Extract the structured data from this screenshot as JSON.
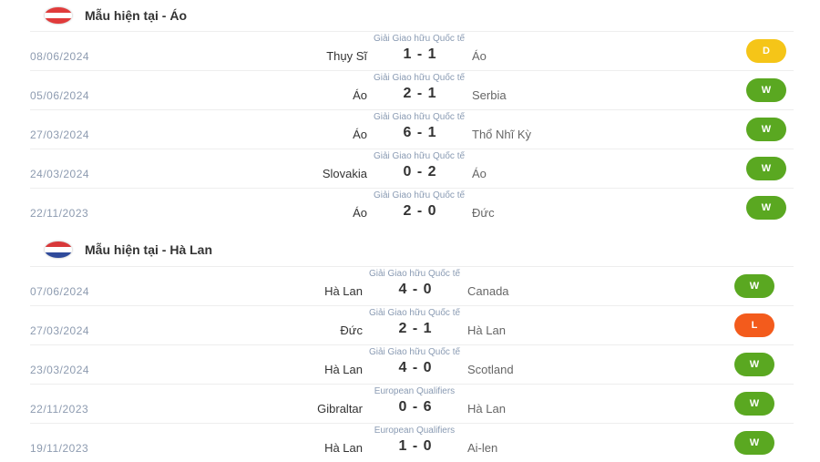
{
  "colors": {
    "W": "#5aa821",
    "D": "#f5c518",
    "L": "#f35b1c"
  },
  "sections": [
    {
      "title": "Mẫu hiện tại - Áo",
      "flag": [
        "#e03b3b",
        "#ffffff",
        "#e03b3b"
      ],
      "matches": [
        {
          "comp": "Giải Giao hữu Quốc tế",
          "date": "08/06/2024",
          "home": "Thụy Sĩ",
          "score": "1 - 1",
          "away": "Áo",
          "result": "D"
        },
        {
          "comp": "Giải Giao hữu Quốc tế",
          "date": "05/06/2024",
          "home": "Áo",
          "score": "2 - 1",
          "away": "Serbia",
          "result": "W"
        },
        {
          "comp": "Giải Giao hữu Quốc tế",
          "date": "27/03/2024",
          "home": "Áo",
          "score": "6 - 1",
          "away": "Thổ Nhĩ Kỳ",
          "result": "W"
        },
        {
          "comp": "Giải Giao hữu Quốc tế",
          "date": "24/03/2024",
          "home": "Slovakia",
          "score": "0 - 2",
          "away": "Áo",
          "result": "W"
        },
        {
          "comp": "Giải Giao hữu Quốc tế",
          "date": "22/11/2023",
          "home": "Áo",
          "score": "2 - 0",
          "away": "Đức",
          "result": "W"
        }
      ]
    },
    {
      "title": "Mẫu hiện tại - Hà Lan",
      "flag": [
        "#d8383a",
        "#ffffff",
        "#2f4a9a"
      ],
      "matches": [
        {
          "comp": "Giải Giao hữu Quốc tế",
          "date": "07/06/2024",
          "home": "Hà Lan",
          "score": "4 - 0",
          "away": "Canada",
          "result": "W"
        },
        {
          "comp": "Giải Giao hữu Quốc tế",
          "date": "27/03/2024",
          "home": "Đức",
          "score": "2 - 1",
          "away": "Hà Lan",
          "result": "L"
        },
        {
          "comp": "Giải Giao hữu Quốc tế",
          "date": "23/03/2024",
          "home": "Hà Lan",
          "score": "4 - 0",
          "away": "Scotland",
          "result": "W"
        },
        {
          "comp": "European Qualifiers",
          "date": "22/11/2023",
          "home": "Gibraltar",
          "score": "0 - 6",
          "away": "Hà Lan",
          "result": "W"
        },
        {
          "comp": "European Qualifiers",
          "date": "19/11/2023",
          "home": "Hà Lan",
          "score": "1 - 0",
          "away": "Ai-len",
          "result": "W"
        }
      ]
    }
  ]
}
